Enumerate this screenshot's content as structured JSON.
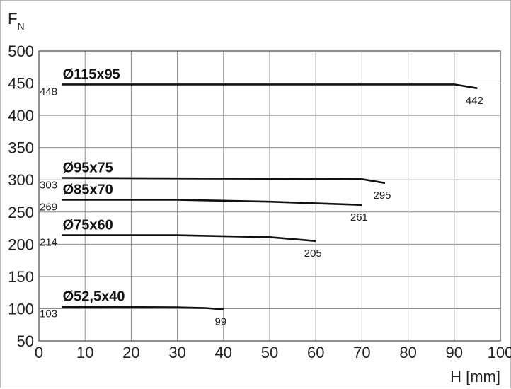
{
  "chart_data": {
    "type": "line",
    "ylabel_main": "F",
    "ylabel_sub": "N",
    "xlabel": "H [mm]",
    "xlim": [
      0,
      100
    ],
    "ylim": [
      50,
      500
    ],
    "x_ticks": [
      0,
      10,
      20,
      30,
      40,
      50,
      60,
      70,
      80,
      90,
      100
    ],
    "y_ticks": [
      50,
      100,
      150,
      200,
      250,
      300,
      350,
      400,
      450,
      500
    ],
    "grid": true,
    "legend": "none",
    "series": [
      {
        "name": "Ø115x95",
        "points": [
          [
            5,
            448
          ],
          [
            90,
            448
          ],
          [
            95,
            442
          ]
        ],
        "start_label": "448",
        "end_label": "442"
      },
      {
        "name": "Ø95x75",
        "points": [
          [
            5,
            303
          ],
          [
            40,
            302
          ],
          [
            70,
            301
          ],
          [
            75,
            295
          ]
        ],
        "start_label": "303",
        "end_label": "295"
      },
      {
        "name": "Ø85x70",
        "points": [
          [
            5,
            269
          ],
          [
            30,
            269
          ],
          [
            50,
            266
          ],
          [
            70,
            261
          ]
        ],
        "start_label": "269",
        "end_label": "261"
      },
      {
        "name": "Ø75x60",
        "points": [
          [
            5,
            214
          ],
          [
            30,
            214
          ],
          [
            50,
            211
          ],
          [
            60,
            205
          ]
        ],
        "start_label": "214",
        "end_label": "205"
      },
      {
        "name": "Ø52,5x40",
        "points": [
          [
            5,
            103
          ],
          [
            30,
            102
          ],
          [
            36,
            101
          ],
          [
            40,
            99
          ]
        ],
        "start_label": "103",
        "end_label": "99"
      }
    ]
  }
}
